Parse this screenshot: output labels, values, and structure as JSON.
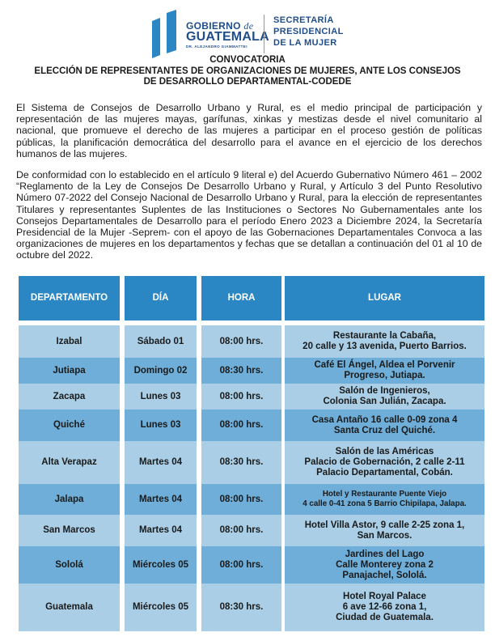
{
  "header": {
    "logo_gobierno": [
      "GOBIERNO",
      "de",
      "GUATEMALA",
      "DR. ALEJANDRO GIAMMATTEI"
    ],
    "logo_secretaria": [
      "SECRETARÍA",
      "PRESIDENCIAL",
      "DE LA MUJER"
    ],
    "colors": {
      "brand_blue": "#1f4e8c",
      "bars": "#2b87c3"
    }
  },
  "title": {
    "line1": "CONVOCATORIA",
    "line2": "ELECCIÓN DE REPRESENTANTES DE ORGANIZACIONES DE MUJERES, ANTE LOS CONSEJOS",
    "line3": "DE DESARROLLO DEPARTAMENTAL-CODEDE"
  },
  "paragraphs": [
    "El Sistema de Consejos de Desarrollo Urbano y Rural, es el medio principal de participación y representación de las mujeres mayas, garífunas, xinkas y mestizas desde el nivel comunitario al nacional, que promueve el derecho de las mujeres a participar en el proceso gestión de políticas públicas, la planificación democrática del desarrollo para el avance en el ejercicio de los derechos humanos de las mujeres.",
    "De conformidad con lo establecido en el artículo 9 literal e) del Acuerdo Gubernativo Número 461 – 2002 “Reglamento de la Ley de Consejos De Desarrollo Urbano y Rural, y Artículo 3 del Punto Resolutivo Número 07-2022 del Consejo Nacional de Desarrollo Urbano y Rural, para la elección de representantes Titulares y representantes Suplentes de las Instituciones o Sectores No Gubernamentales ante los Consejos Departamentales de Desarrollo para el período Enero 2023 a Diciembre 2024, la Secretaría Presidencial de la Mujer -Seprem- con el apoyo de las Gobernaciones Departamentales Convoca a las organizaciones de mujeres en los departamentos y fechas que se detallan a continuación del 01 al 10 de octubre del 2022."
  ],
  "table": {
    "headers": [
      "DEPARTAMENTO",
      "DÍA",
      "HORA",
      "LUGAR"
    ],
    "colors": {
      "header": "#2b87c3",
      "row_light": "#a9cee6",
      "row_dark": "#6eaed8"
    },
    "rows": [
      {
        "dep": "Izabal",
        "dia": "Sábado 01",
        "hora": "08:00 hrs.",
        "lugar": [
          "Restaurante la Cabaña,",
          "20 calle y 13 avenida, Puerto Barrios."
        ]
      },
      {
        "dep": "Jutiapa",
        "dia": "Domingo 02",
        "hora": "08:30 hrs.",
        "lugar": [
          "Café El Ángel, Aldea el Porvenir",
          "Progreso, Jutiapa."
        ]
      },
      {
        "dep": "Zacapa",
        "dia": "Lunes 03",
        "hora": "08:00 hrs.",
        "lugar": [
          "Salón de Ingenieros,",
          "Colonia San Julián, Zacapa."
        ]
      },
      {
        "dep": "Quiché",
        "dia": "Lunes 03",
        "hora": "08:00 hrs.",
        "lugar": [
          "Casa Antaño 16 calle 0-09 zona 4",
          "Santa Cruz del Quiché."
        ]
      },
      {
        "dep": "Alta Verapaz",
        "dia": "Martes 04",
        "hora": "08:30 hrs.",
        "lugar": [
          "Salón de las Américas",
          "Palacio de Gobernación, 2 calle 2-11",
          "Palacio Departamental, Cobán."
        ]
      },
      {
        "dep": "Jalapa",
        "dia": "Martes 04",
        "hora": "08:00 hrs.",
        "lugar": [
          "Hotel y Restaurante  Puente Viejo",
          "4 calle 0-41 zona 5 Barrio Chipilapa, Jalapa."
        ]
      },
      {
        "dep": "San Marcos",
        "dia": "Martes 04",
        "hora": "08:00 hrs.",
        "lugar": [
          "Hotel Villa Astor, 9 calle 2-25 zona 1,",
          "San Marcos."
        ]
      },
      {
        "dep": "Sololá",
        "dia": "Miércoles 05",
        "hora": "08:00 hrs.",
        "lugar": [
          "Jardines del Lago",
          "Calle Monterey zona 2",
          "Panajachel, Sololá."
        ]
      },
      {
        "dep": "Guatemala",
        "dia": "Miércoles 05",
        "hora": "08:30 hrs.",
        "lugar": [
          "Hotel Royal Palace",
          "6 ave 12-66 zona 1,",
          "Ciudad de Guatemala."
        ]
      }
    ]
  }
}
